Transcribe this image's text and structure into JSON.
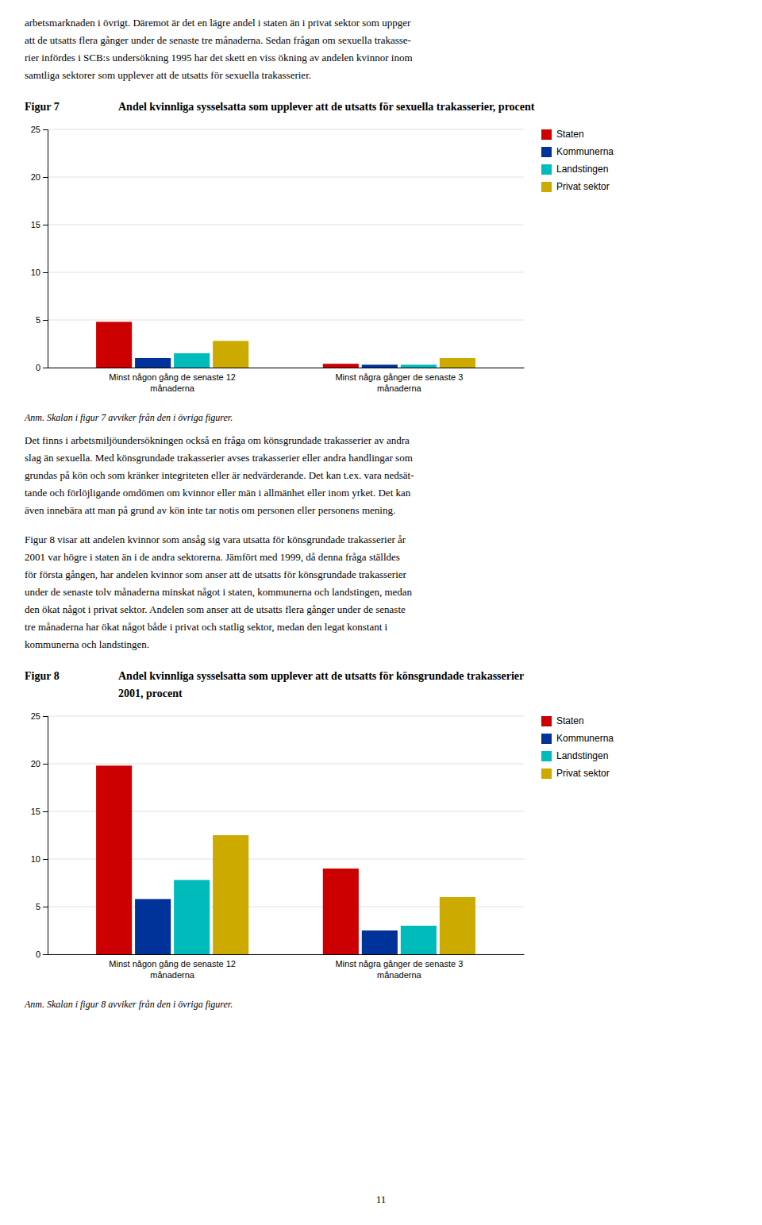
{
  "text_top": [
    "arbetsmarknaden i övrigt. Däremot är det en lägre andel i staten än i privat sektor som uppger",
    "att de utsatts flera gånger under de senaste tre månaderna. Sedan frågan om sexuella trakasse-",
    "rier infördes i SCB:s undersökning 1995 har det skett en viss ökning av andelen kvinnor inom",
    "samtliga sektorer som upplever att de utsatts för sexuella trakasserier."
  ],
  "chart_data": [
    {
      "type": "bar",
      "figure_label": "Figur 7",
      "title": [
        "Andel kvinnliga sysselsatta som upplever att de utsatts för sexuella trakasserier, procent"
      ],
      "categories": [
        "Minst någon gång de senaste 12\nmånaderna",
        "Minst några gånger de senaste 3\nmånaderna"
      ],
      "series": [
        {
          "name": "Staten",
          "color": "#CC0000",
          "values": [
            4.8,
            0.4
          ]
        },
        {
          "name": "Kommunerna",
          "color": "#003399",
          "values": [
            1.0,
            0.3
          ]
        },
        {
          "name": "Landstingen",
          "color": "#00BBBB",
          "values": [
            1.5,
            0.3
          ]
        },
        {
          "name": "Privat sektor",
          "color": "#CCAA00",
          "values": [
            2.8,
            1.0
          ]
        }
      ],
      "ylim": [
        0,
        25
      ],
      "yticks": [
        0,
        5,
        10,
        15,
        20,
        25
      ],
      "grid": true,
      "legend": "upper right",
      "annotations": [
        "Anm. Skalan i figur 7 avviker från den i övriga figurer."
      ]
    },
    {
      "type": "bar",
      "figure_label": "Figur 8",
      "title": [
        "Andel kvinnliga sysselsatta som upplever att de utsatts för könsgrundade trakasserier",
        "2001, procent"
      ],
      "categories": [
        "Minst någon gång de senaste 12\nmånaderna",
        "Minst några gånger de senaste 3\nmånaderna"
      ],
      "series": [
        {
          "name": "Staten",
          "color": "#CC0000",
          "values": [
            19.8,
            9.0
          ]
        },
        {
          "name": "Kommunerna",
          "color": "#003399",
          "values": [
            5.8,
            2.5
          ]
        },
        {
          "name": "Landstingen",
          "color": "#00BBBB",
          "values": [
            7.8,
            3.0
          ]
        },
        {
          "name": "Privat sektor",
          "color": "#CCAA00",
          "values": [
            12.5,
            6.0
          ]
        }
      ],
      "ylim": [
        0,
        25
      ],
      "yticks": [
        0,
        5,
        10,
        15,
        20,
        25
      ],
      "grid": true,
      "legend": "upper right",
      "annotations": [
        "Anm. Skalan i figur 8 avviker från den i övriga figurer."
      ]
    }
  ],
  "text_between": [
    "Det finns i arbetsmiljöundersökningen också en fråga om könsgrundade trakasserier av andra",
    "slag än sexuella. Med könsgrundade trakasserier avses trakasserier eller andra handlingar som",
    "grundas på kön och som kränker integriteten eller är nedvärderande. Det kan t.ex. vara nedsät-",
    "tande och förlöjligande omdömen om kvinnor eller män i allmänhet eller inom yrket. Det kan",
    "även innebära att man på grund av kön inte tar notis om personen eller personens mening."
  ],
  "text_between2": [
    "Figur 8 visar att andelen kvinnor som ansåg sig vara utsatta för könsgrundade trakasserier år",
    "2001 var högre i staten än i de andra sektorerna. Jämfört med 1999, då denna fråga ställdes",
    "för första gången, har andelen kvinnor som anser att de utsatts för könsgrundade trakasserier",
    "under de senaste tolv månaderna minskat något i staten, kommunerna och landstingen, medan",
    "den ökat något i privat sektor. Andelen som anser att de utsatts flera gånger under de senaste",
    "tre månaderna har ökat något både i privat och statlig sektor, medan den legat konstant i",
    "kommunerna och landstingen."
  ],
  "page_number": "11"
}
